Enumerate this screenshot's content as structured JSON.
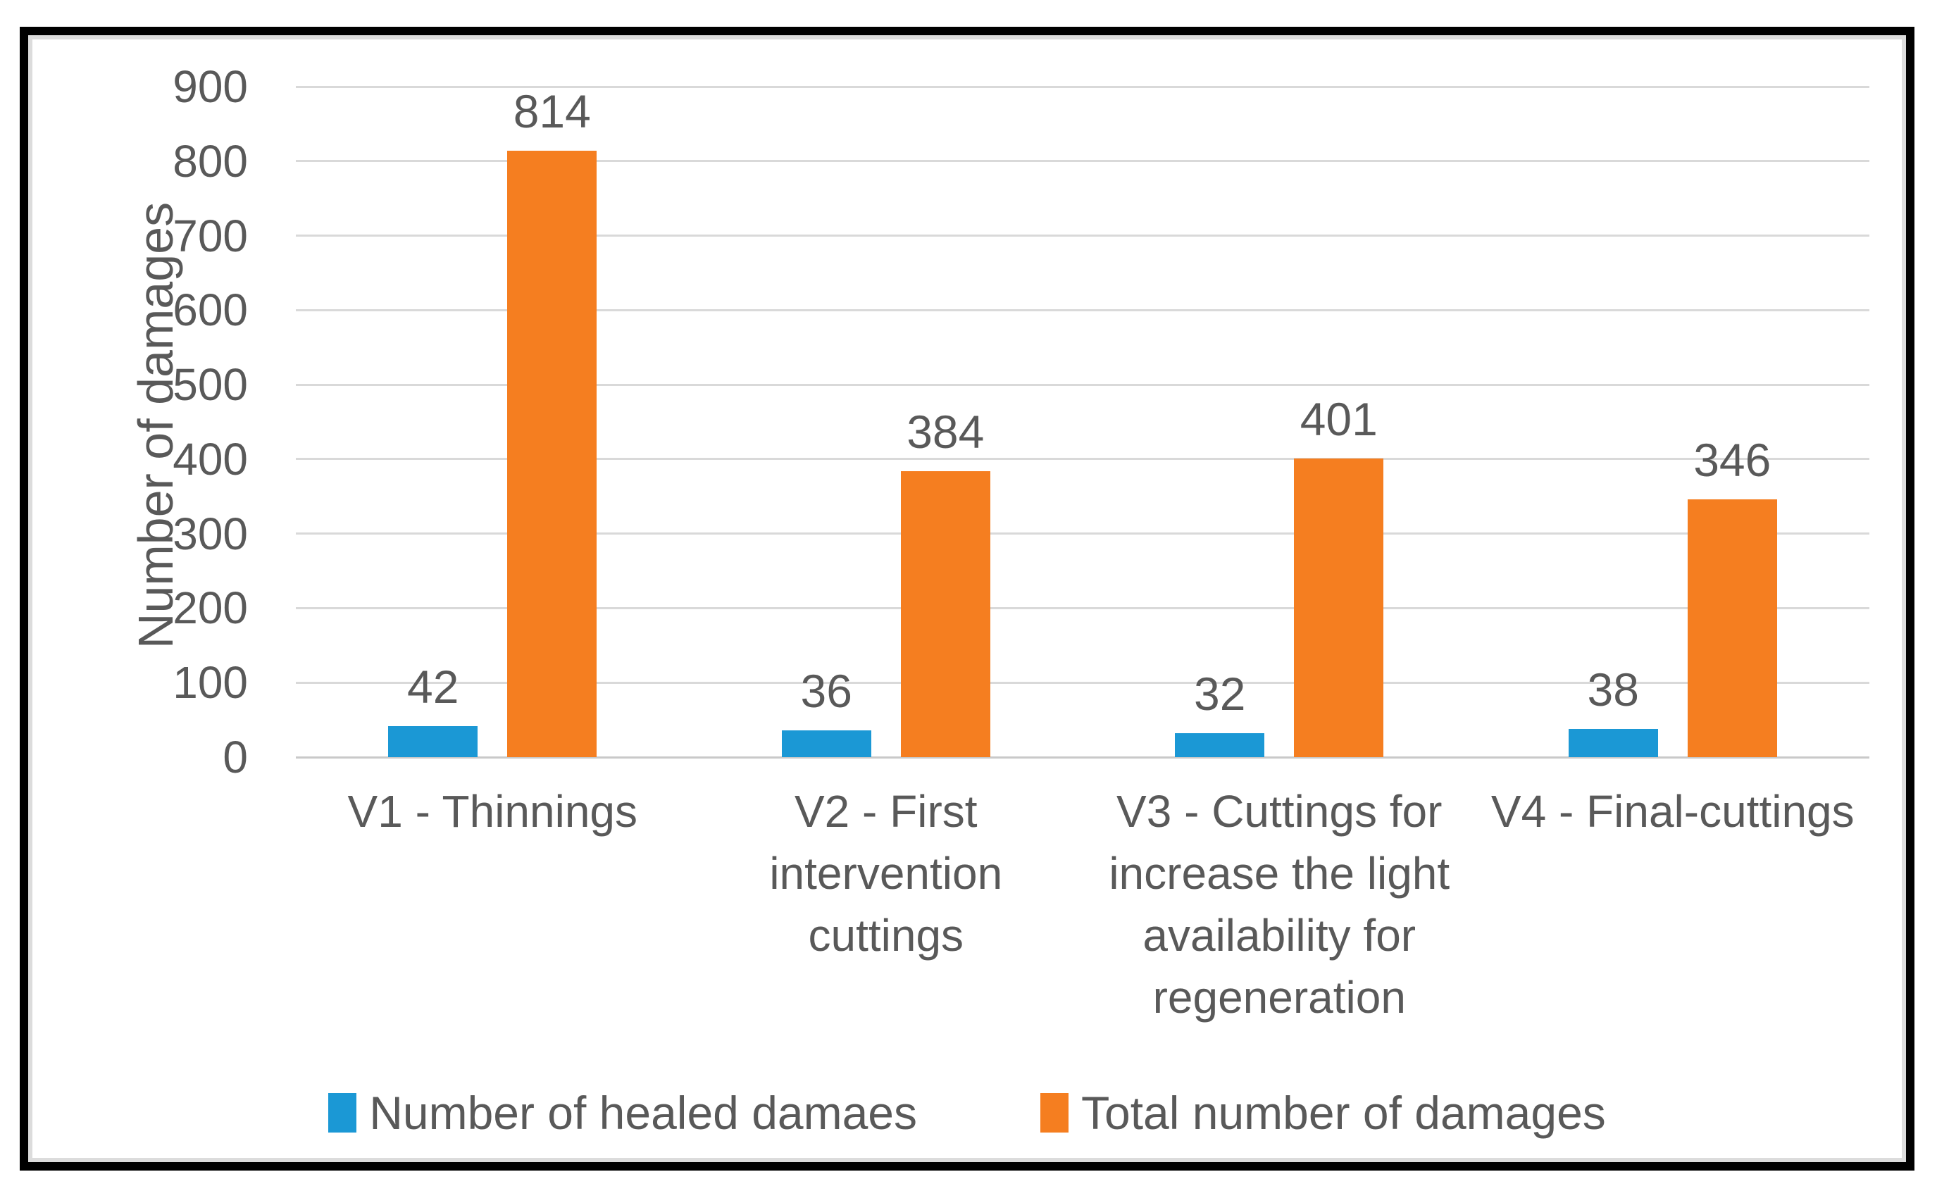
{
  "colors": {
    "frame_border": "#000000",
    "background": "#FFFFFF",
    "text": "#595959",
    "gridline": "#D9D9D9",
    "axis_line": "#C9C9C9",
    "series_blue": "#1B98D5",
    "series_orange": "#F57E20"
  },
  "chart_data": {
    "type": "bar",
    "title": "",
    "xlabel": "",
    "ylabel": "Number of damages",
    "ylim": [
      0,
      900
    ],
    "yticks": [
      0,
      100,
      200,
      300,
      400,
      500,
      600,
      700,
      800,
      900
    ],
    "grid": true,
    "legend_position": "bottom",
    "data_labels": "outside-end",
    "categories": [
      "V1 - Thinnings",
      "V2 - First\nintervention\ncuttings",
      "V3 - Cuttings for\nincrease the light\navailability for\nregeneration",
      "V4 - Final-cuttings"
    ],
    "series": [
      {
        "name": "Number of healed damaes",
        "color": "#1B98D5",
        "values": [
          42,
          36,
          32,
          38
        ]
      },
      {
        "name": "Total number of damages",
        "color": "#F57E20",
        "values": [
          814,
          384,
          401,
          346
        ]
      }
    ]
  }
}
